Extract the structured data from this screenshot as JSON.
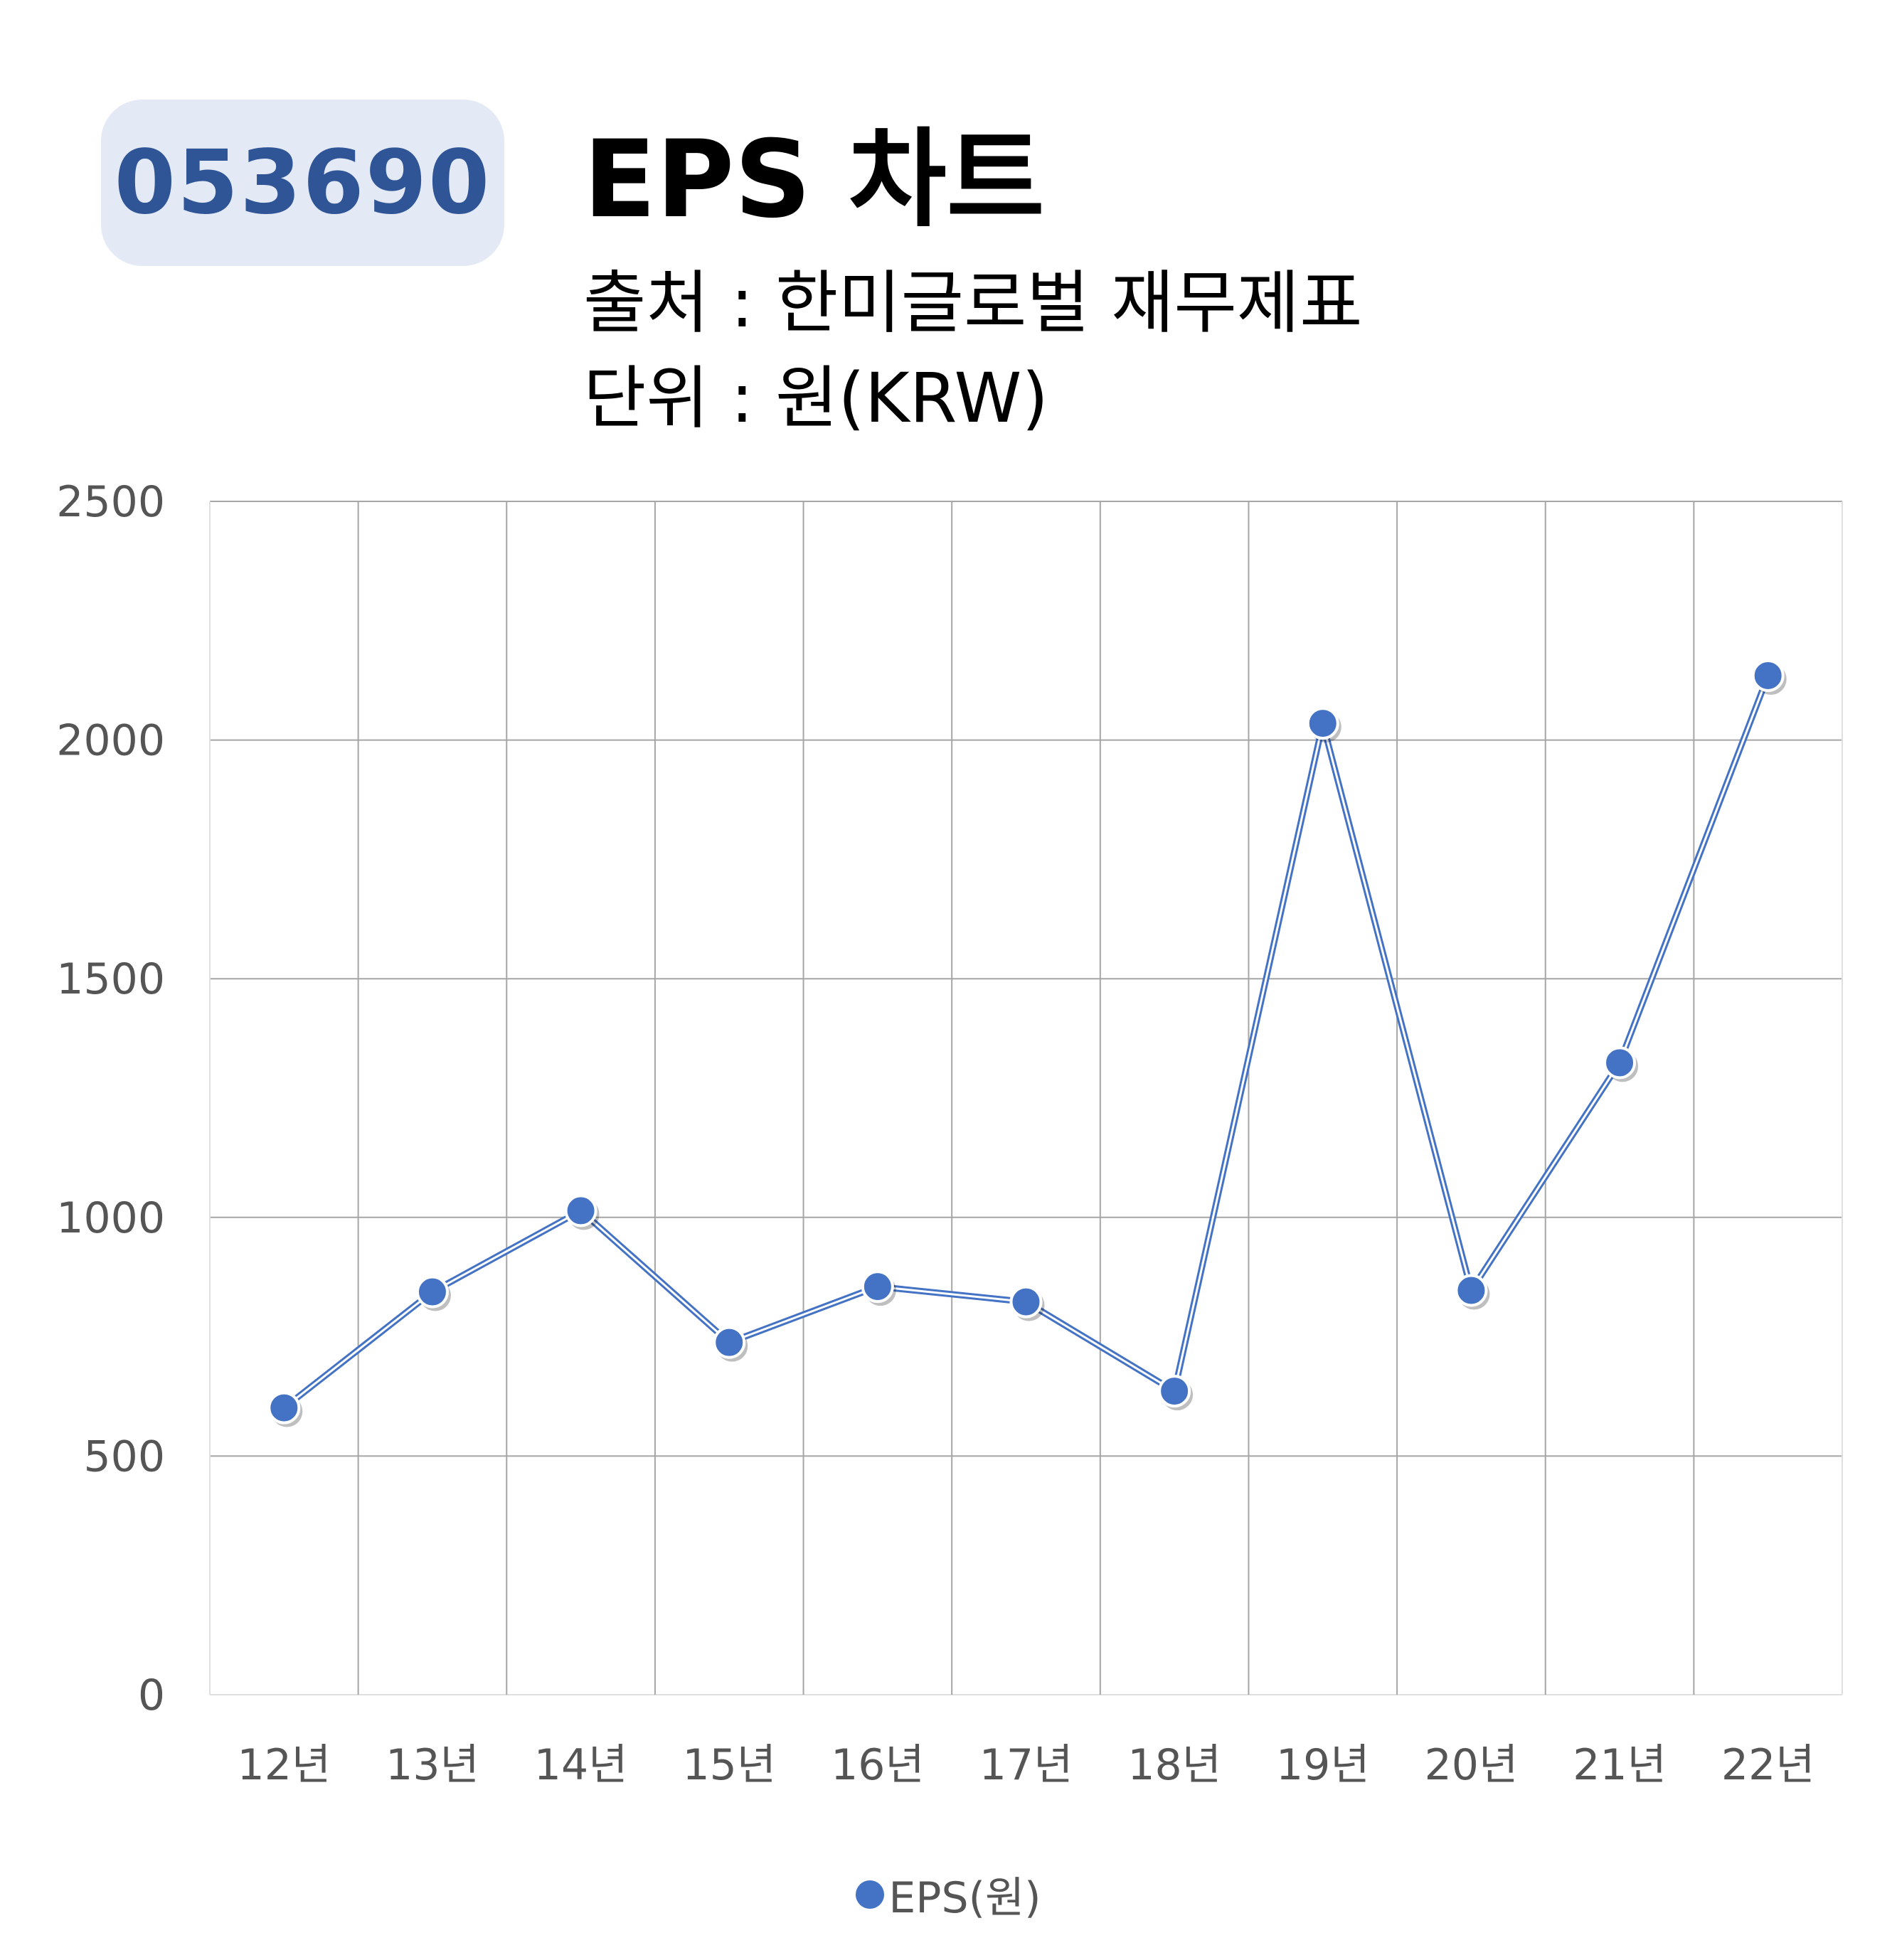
{
  "header": {
    "ticker": "053690",
    "title": "EPS 차트",
    "source": "출처 : 한미글로벌 재무제표",
    "unit": "단위 : 원(KRW)"
  },
  "colors": {
    "series": "#4472c4",
    "badge_bg": "#e3e9f5",
    "badge_text": "#2f5597",
    "grid": "#a6a6a6"
  },
  "chart_data": {
    "type": "line",
    "categories": [
      "12년",
      "13년",
      "14년",
      "15년",
      "16년",
      "17년",
      "18년",
      "19년",
      "20년",
      "21년",
      "22년"
    ],
    "series": [
      {
        "name": "EPS(원)",
        "values": [
          601,
          844,
          1014,
          738,
          855,
          823,
          636,
          2035,
          847,
          1324,
          2135
        ]
      }
    ],
    "ylim": [
      0,
      2500
    ],
    "yticks": [
      0,
      500,
      1000,
      1500,
      2000,
      2500
    ],
    "grid": true,
    "legend": "bottom"
  }
}
